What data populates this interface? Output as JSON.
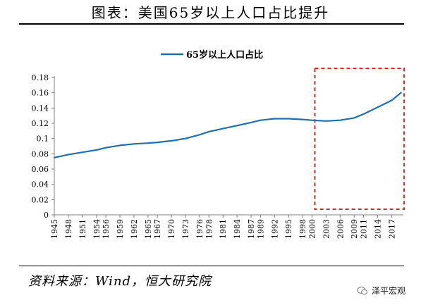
{
  "header": {
    "title": "图表：美国65岁以上人口占比提升"
  },
  "footer": {
    "source": "资料来源：Wind，恒大研究院",
    "brand": "泽平宏观"
  },
  "colors": {
    "series": "#1f6fb5",
    "highlight": "#e0281f",
    "axis": "#7f7f7f"
  },
  "icons": {
    "brand": "wechat-bubble-icon"
  },
  "chart_data": {
    "type": "line",
    "title": "",
    "xlabel": "",
    "ylabel": "",
    "ylim": [
      0,
      0.18
    ],
    "yticks": [
      "0",
      "0.02",
      "0.04",
      "0.06",
      "0.08",
      "0.1",
      "0.12",
      "0.14",
      "0.16",
      "0.18"
    ],
    "xticks": [
      "1945",
      "1948",
      "1951",
      "1954",
      "1956",
      "1959",
      "1962",
      "1965",
      "1967",
      "1970",
      "1973",
      "1976",
      "1978",
      "1981",
      "1984",
      "1987",
      "1989",
      "1992",
      "1995",
      "1998",
      "2000",
      "2003",
      "2006",
      "2009",
      "2011",
      "2014",
      "2017"
    ],
    "legend": {
      "position": "top-center"
    },
    "highlight_region": {
      "x_start": 2000,
      "x_end": 2018,
      "style": "dashed-red-box"
    },
    "series": [
      {
        "name": "65岁以上人口占比",
        "x": [
          1945,
          1948,
          1951,
          1954,
          1956,
          1959,
          1962,
          1965,
          1967,
          1970,
          1973,
          1976,
          1978,
          1981,
          1984,
          1987,
          1989,
          1992,
          1995,
          1998,
          2000,
          2003,
          2006,
          2009,
          2011,
          2014,
          2017,
          2019
        ],
        "values": [
          0.075,
          0.079,
          0.082,
          0.085,
          0.088,
          0.091,
          0.093,
          0.094,
          0.095,
          0.097,
          0.1,
          0.105,
          0.109,
          0.113,
          0.117,
          0.121,
          0.124,
          0.126,
          0.126,
          0.125,
          0.124,
          0.123,
          0.124,
          0.127,
          0.132,
          0.141,
          0.15,
          0.16
        ]
      }
    ]
  }
}
